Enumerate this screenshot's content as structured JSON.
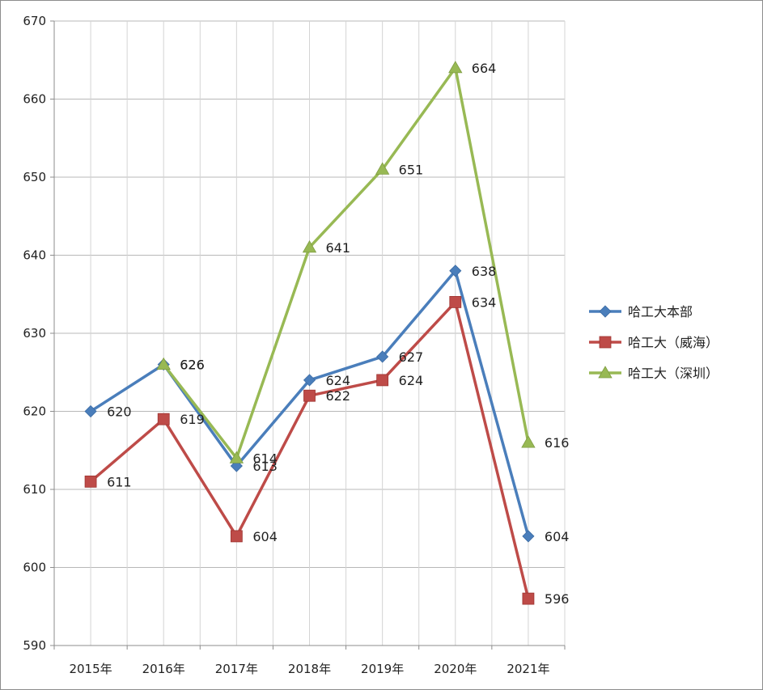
{
  "chart_data": {
    "type": "line",
    "categories": [
      "2015年",
      "2016年",
      "2017年",
      "2018年",
      "2019年",
      "2020年",
      "2021年"
    ],
    "series": [
      {
        "name": "哈工大本部",
        "values": [
          620,
          626,
          613,
          624,
          627,
          638,
          604
        ],
        "color": "#4a7ebb",
        "marker": "diamond"
      },
      {
        "name": "哈工大（威海）",
        "values": [
          611,
          619,
          604,
          622,
          624,
          634,
          596
        ],
        "color": "#be4b48",
        "marker": "square"
      },
      {
        "name": "哈工大（深圳）",
        "values": [
          null,
          626,
          614,
          641,
          651,
          664,
          616
        ],
        "color": "#98b954",
        "marker": "triangle"
      }
    ],
    "ylim": [
      590,
      670
    ],
    "yticks": [
      590,
      600,
      610,
      620,
      630,
      640,
      650,
      660,
      670
    ],
    "grid": true,
    "legend": "right",
    "title": "",
    "xlabel": "",
    "ylabel": ""
  }
}
